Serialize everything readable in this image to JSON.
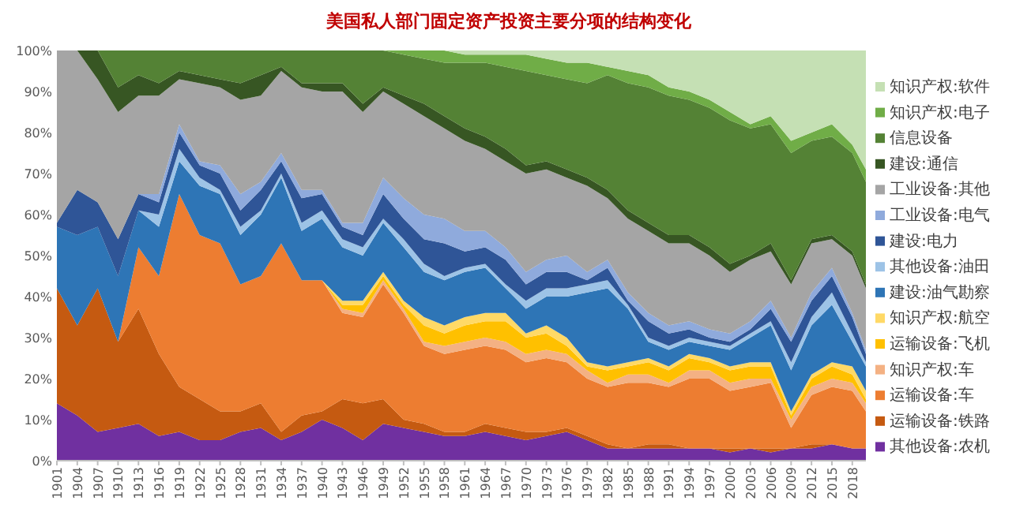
{
  "chart_data": {
    "type": "area",
    "stacked": true,
    "title": "美国私人部门固定资产投资主要分项的结构变化",
    "legend": "right",
    "x": [
      1901,
      1904,
      1907,
      1910,
      1913,
      1916,
      1919,
      1922,
      1925,
      1928,
      1931,
      1934,
      1937,
      1940,
      1943,
      1946,
      1949,
      1952,
      1955,
      1958,
      1961,
      1964,
      1967,
      1970,
      1973,
      1976,
      1979,
      1982,
      1985,
      1988,
      1991,
      1994,
      1997,
      2000,
      2003,
      2006,
      2009,
      2012,
      2015,
      2018,
      2020
    ],
    "xlim": [
      1901,
      2020
    ],
    "xticks": [
      1901,
      1904,
      1907,
      1910,
      1913,
      1916,
      1919,
      1922,
      1925,
      1928,
      1931,
      1934,
      1937,
      1940,
      1943,
      1946,
      1949,
      1952,
      1955,
      1958,
      1961,
      1964,
      1967,
      1970,
      1973,
      1976,
      1979,
      1982,
      1985,
      1988,
      1991,
      1994,
      1997,
      2000,
      2003,
      2006,
      2009,
      2012,
      2015,
      2018
    ],
    "ylim": [
      0,
      100
    ],
    "yticks": [
      {
        "value": 0,
        "label": "0%"
      },
      {
        "value": 10,
        "label": "10%"
      },
      {
        "value": 20,
        "label": "20%"
      },
      {
        "value": 30,
        "label": "30%"
      },
      {
        "value": 40,
        "label": "40%"
      },
      {
        "value": 50,
        "label": "50%"
      },
      {
        "value": 60,
        "label": "60%"
      },
      {
        "value": 70,
        "label": "70%"
      },
      {
        "value": 80,
        "label": "80%"
      },
      {
        "value": 90,
        "label": "90%"
      },
      {
        "value": 100,
        "label": "100%"
      }
    ],
    "series": [
      {
        "name": "其他设备:农机",
        "color": "#7030a0",
        "values": [
          14,
          11,
          7,
          8,
          9,
          6,
          7,
          5,
          5,
          7,
          8,
          5,
          7,
          10,
          8,
          5,
          9,
          8,
          7,
          6,
          6,
          7,
          6,
          5,
          6,
          7,
          5,
          3,
          3,
          3,
          3,
          3,
          3,
          2,
          3,
          2,
          3,
          3,
          4,
          3,
          3
        ]
      },
      {
        "name": "运输设备:铁路",
        "color": "#c55a11",
        "values": [
          28,
          22,
          35,
          21,
          28,
          20,
          11,
          10,
          7,
          5,
          6,
          2,
          4,
          2,
          7,
          9,
          6,
          2,
          2,
          1,
          1,
          2,
          2,
          2,
          1,
          1,
          1,
          1,
          0,
          1,
          1,
          0,
          0,
          1,
          0,
          1,
          0,
          1,
          0,
          0,
          0
        ]
      },
      {
        "name": "运输设备:车",
        "color": "#ed7d31",
        "values": [
          0,
          0,
          0,
          0,
          15,
          19,
          47,
          40,
          41,
          31,
          31,
          46,
          33,
          32,
          21,
          21,
          28,
          26,
          19,
          19,
          20,
          19,
          19,
          17,
          18,
          16,
          14,
          14,
          16,
          15,
          14,
          17,
          17,
          14,
          15,
          16,
          5,
          12,
          14,
          14,
          9
        ]
      },
      {
        "name": "知识产权:车",
        "color": "#f4b183",
        "values": [
          0,
          0,
          0,
          0,
          0,
          0,
          0,
          0,
          0,
          0,
          0,
          0,
          0,
          0,
          1,
          1,
          1,
          1,
          1,
          2,
          2,
          2,
          2,
          2,
          2,
          2,
          2,
          1,
          2,
          2,
          1,
          2,
          2,
          2,
          2,
          1,
          2,
          2,
          2,
          2,
          2
        ]
      },
      {
        "name": "运输设备:飞机",
        "color": "#ffc000",
        "values": [
          0,
          0,
          0,
          0,
          0,
          0,
          0,
          0,
          0,
          0,
          0,
          0,
          0,
          0,
          1,
          2,
          1,
          1,
          4,
          3,
          4,
          4,
          5,
          4,
          4,
          2,
          1,
          3,
          2,
          3,
          3,
          3,
          2,
          3,
          3,
          3,
          1,
          2,
          3,
          2,
          1
        ]
      },
      {
        "name": "知识产权:航空",
        "color": "#ffd966",
        "values": [
          0,
          0,
          0,
          0,
          0,
          0,
          0,
          0,
          0,
          0,
          0,
          0,
          0,
          0,
          1,
          1,
          1,
          1,
          2,
          2,
          2,
          2,
          2,
          1,
          2,
          2,
          1,
          1,
          1,
          1,
          1,
          1,
          1,
          1,
          1,
          1,
          1,
          1,
          1,
          2,
          2
        ]
      },
      {
        "name": "建设:油气勘察",
        "color": "#2e75b6",
        "values": [
          15,
          22,
          15,
          16,
          9,
          12,
          8,
          12,
          12,
          12,
          15,
          16,
          12,
          15,
          13,
          11,
          12,
          13,
          11,
          11,
          11,
          11,
          6,
          6,
          7,
          10,
          17,
          19,
          13,
          4,
          4,
          3,
          3,
          4,
          6,
          9,
          10,
          12,
          14,
          6,
          6
        ]
      },
      {
        "name": "其他设备:油田",
        "color": "#9dc3e6",
        "values": [
          0,
          0,
          0,
          0,
          0,
          3,
          3,
          2,
          1,
          2,
          1,
          1,
          2,
          2,
          2,
          2,
          1,
          2,
          2,
          1,
          1,
          1,
          1,
          2,
          2,
          2,
          2,
          2,
          1,
          1,
          1,
          1,
          1,
          1,
          1,
          1,
          2,
          2,
          3,
          2,
          1
        ]
      },
      {
        "name": "建设:电力",
        "color": "#2f5597",
        "values": [
          1,
          11,
          6,
          9,
          4,
          3,
          4,
          3,
          4,
          4,
          5,
          3,
          6,
          4,
          3,
          3,
          6,
          5,
          6,
          8,
          4,
          4,
          6,
          4,
          4,
          4,
          1,
          3,
          1,
          4,
          3,
          2,
          1,
          1,
          1,
          3,
          5,
          4,
          4,
          4,
          2
        ]
      },
      {
        "name": "工业设备:电气",
        "color": "#8faadc",
        "values": [
          0,
          0,
          0,
          0,
          0,
          2,
          2,
          1,
          2,
          4,
          2,
          2,
          2,
          1,
          1,
          3,
          4,
          5,
          6,
          6,
          5,
          4,
          3,
          3,
          3,
          4,
          2,
          2,
          2,
          2,
          2,
          2,
          2,
          2,
          2,
          2,
          1,
          2,
          2,
          1,
          1
        ]
      },
      {
        "name": "工业设备:其他",
        "color": "#a5a5a5",
        "values": [
          42,
          34,
          30,
          31,
          24,
          24,
          11,
          19,
          19,
          23,
          21,
          20,
          25,
          24,
          32,
          27,
          21,
          23,
          24,
          22,
          22,
          20,
          21,
          24,
          22,
          19,
          21,
          15,
          18,
          20,
          20,
          19,
          18,
          15,
          15,
          12,
          13,
          12,
          7,
          14,
          15
        ]
      },
      {
        "name": "建设:通信",
        "color": "#375623",
        "values": [
          0,
          0,
          7,
          6,
          5,
          3,
          2,
          2,
          2,
          4,
          5,
          1,
          1,
          2,
          2,
          2,
          1,
          2,
          3,
          3,
          3,
          3,
          3,
          2,
          2,
          2,
          2,
          2,
          2,
          2,
          2,
          2,
          2,
          2,
          1,
          2,
          1,
          1,
          1,
          1,
          1
        ]
      },
      {
        "name": "信息设备",
        "color": "#548235",
        "values": [
          0,
          0,
          0,
          9,
          6,
          8,
          5,
          6,
          7,
          8,
          6,
          4,
          8,
          8,
          8,
          13,
          9,
          10,
          11,
          13,
          16,
          18,
          20,
          23,
          21,
          22,
          23,
          28,
          31,
          33,
          34,
          33,
          34,
          35,
          31,
          29,
          31,
          24,
          24,
          24,
          25
        ]
      },
      {
        "name": "知识产权:电子",
        "color": "#70ad47",
        "values": [
          0,
          0,
          0,
          0,
          0,
          0,
          0,
          0,
          0,
          0,
          0,
          0,
          0,
          0,
          0,
          0,
          0,
          1,
          2,
          3,
          2,
          2,
          3,
          4,
          4,
          4,
          5,
          2,
          3,
          3,
          2,
          2,
          2,
          2,
          1,
          2,
          3,
          2,
          3,
          2,
          3
        ]
      },
      {
        "name": "知识产权:软件",
        "color": "#c5e0b4",
        "values": [
          0,
          0,
          0,
          0,
          0,
          0,
          0,
          0,
          0,
          0,
          0,
          0,
          0,
          0,
          0,
          0,
          0,
          0,
          0,
          0,
          1,
          1,
          1,
          1,
          2,
          3,
          3,
          4,
          5,
          6,
          9,
          10,
          12,
          15,
          18,
          16,
          22,
          20,
          18,
          23,
          29
        ]
      }
    ]
  }
}
